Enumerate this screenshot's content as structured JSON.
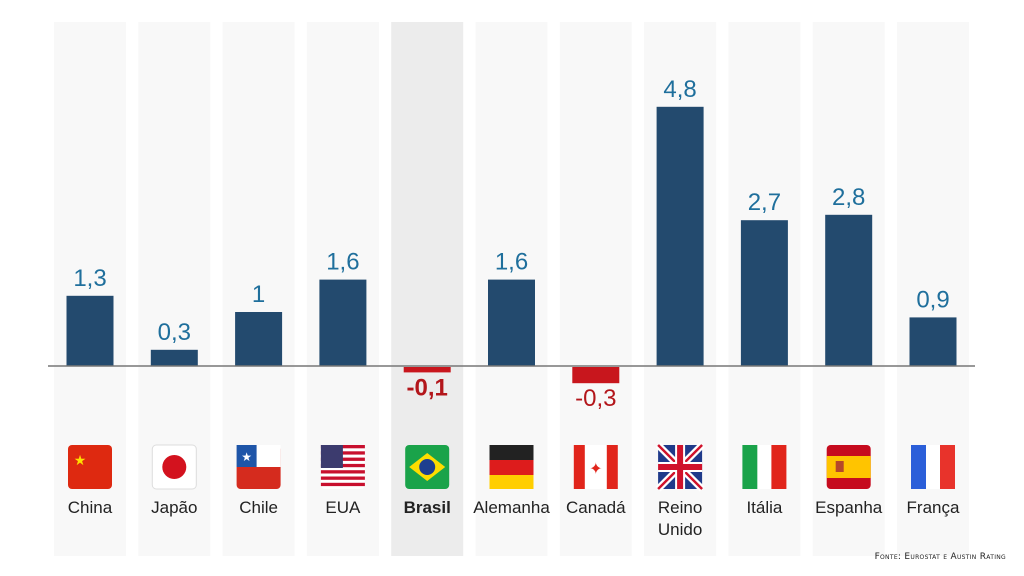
{
  "chart_data": {
    "type": "bar",
    "categories": [
      "China",
      "Japão",
      "Chile",
      "EUA",
      "Brasil",
      "Alemanha",
      "Canadá",
      "Reino Unido",
      "Itália",
      "Espanha",
      "França"
    ],
    "values": [
      1.3,
      0.3,
      1,
      1.6,
      -0.1,
      1.6,
      -0.3,
      4.8,
      2.7,
      2.8,
      0.9
    ],
    "value_labels": [
      "1,3",
      "0,3",
      "1",
      "1,6",
      "-0,1",
      "1,6",
      "-0,3",
      "4,8",
      "2,7",
      "2,8",
      "0,9"
    ],
    "highlight": "Brasil",
    "flag_icons": [
      "china-flag",
      "japan-flag",
      "chile-flag",
      "usa-flag",
      "brazil-flag",
      "germany-flag",
      "canada-flag",
      "uk-flag",
      "italy-flag",
      "spain-flag",
      "france-flag"
    ],
    "colors": {
      "positive": "#234a6e",
      "negative": "#c8161d",
      "label_positive": "#1f6f9c",
      "label_negative": "#b3161b"
    },
    "title": "",
    "xlabel": "",
    "ylabel": "",
    "grid": false
  },
  "source": "Fonte: Eurostat e Austin Rating"
}
